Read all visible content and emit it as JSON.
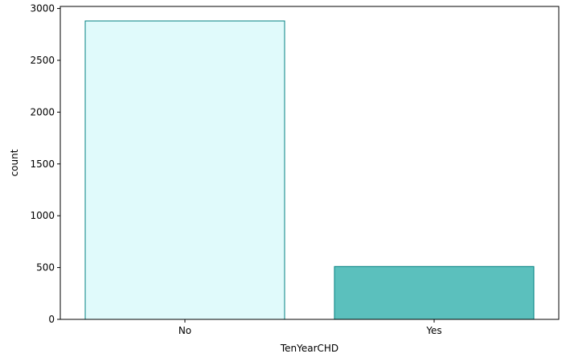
{
  "chart_data": {
    "type": "bar",
    "title": "",
    "xlabel": "TenYearCHD",
    "ylabel": "count",
    "categories": [
      "No",
      "Yes"
    ],
    "values": [
      2880,
      510
    ],
    "ylim": [
      0,
      3020
    ],
    "yticks": [
      0,
      500,
      1000,
      1500,
      2000,
      2500,
      3000
    ],
    "grid": false,
    "colors": {
      "bar_fills": [
        "#e0fafb",
        "#5bc0bd"
      ],
      "bar_edge": "#008080",
      "axis": "#000000"
    }
  }
}
